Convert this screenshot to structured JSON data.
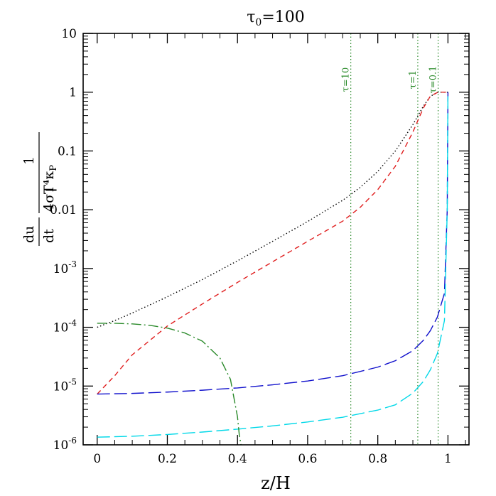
{
  "chart_data": {
    "type": "line",
    "title": "τ₀=100",
    "xlabel": "z/H",
    "ylabel": "- (du/dt) · 1/(4σT⁴κP)",
    "xlim": [
      -0.04,
      1.06
    ],
    "ylim": [
      1e-06,
      10
    ],
    "y_scale": "log",
    "grid": false,
    "x_ticks": [
      {
        "value": 0,
        "label": "0"
      },
      {
        "value": 0.2,
        "label": "0.2"
      },
      {
        "value": 0.4,
        "label": "0.4"
      },
      {
        "value": 0.6,
        "label": "0.6"
      },
      {
        "value": 0.8,
        "label": "0.8"
      },
      {
        "value": 1,
        "label": "1"
      }
    ],
    "y_ticks": [
      {
        "value": 10,
        "label": "10",
        "exp": ""
      },
      {
        "value": 1,
        "label": "1",
        "exp": ""
      },
      {
        "value": 0.1,
        "label": "0.1",
        "exp": ""
      },
      {
        "value": 0.01,
        "label": "0.01",
        "exp": ""
      },
      {
        "value": 0.001,
        "label": "10",
        "exp": "-3"
      },
      {
        "value": 0.0001,
        "label": "10",
        "exp": "-4"
      },
      {
        "value": 1e-05,
        "label": "10",
        "exp": "-5"
      },
      {
        "value": 1e-06,
        "label": "10",
        "exp": "-6"
      }
    ],
    "tau_markers": [
      {
        "label": "τ=10",
        "x": 0.723
      },
      {
        "label": "τ=1",
        "x": 0.914
      },
      {
        "label": "τ=0.1",
        "x": 0.972
      }
    ],
    "series": [
      {
        "color": "#000000",
        "dash": "1.5,3",
        "x": [
          0,
          0.05,
          0.1,
          0.2,
          0.3,
          0.4,
          0.5,
          0.6,
          0.7,
          0.75,
          0.8,
          0.85,
          0.9,
          0.93,
          0.95,
          0.97,
          0.98,
          1.0
        ],
        "y": [
          0.0001,
          0.00013,
          0.000175,
          0.00033,
          0.00065,
          0.00135,
          0.0029,
          0.0063,
          0.0145,
          0.024,
          0.045,
          0.1,
          0.28,
          0.58,
          0.85,
          0.99,
          1.0,
          1.0
        ]
      },
      {
        "color": "#e02020",
        "dash": "7,5",
        "x": [
          0,
          0.05,
          0.1,
          0.2,
          0.3,
          0.4,
          0.5,
          0.6,
          0.7,
          0.75,
          0.8,
          0.85,
          0.9,
          0.93,
          0.95,
          0.97,
          0.98,
          1.0
        ],
        "y": [
          7.3e-06,
          1.5e-05,
          3.4e-05,
          0.000105,
          0.00025,
          0.00058,
          0.0013,
          0.0029,
          0.0064,
          0.011,
          0.022,
          0.055,
          0.21,
          0.54,
          0.86,
          0.99,
          1.0,
          1.0
        ]
      },
      {
        "color": "#1010cc",
        "dash": "18,6",
        "x": [
          0,
          0.1,
          0.2,
          0.3,
          0.4,
          0.5,
          0.6,
          0.7,
          0.8,
          0.85,
          0.9,
          0.93,
          0.95,
          0.97,
          0.99,
          0.998,
          1.0
        ],
        "y": [
          7.3e-06,
          7.5e-06,
          7.9e-06,
          8.5e-06,
          9.3e-06,
          1.05e-05,
          1.22e-05,
          1.5e-05,
          2.1e-05,
          2.7e-05,
          4e-05,
          6e-05,
          8.8e-05,
          0.00015,
          0.00038,
          0.01,
          1.0
        ]
      },
      {
        "color": "#00d8e8",
        "dash": "18,6",
        "x": [
          0,
          0.1,
          0.2,
          0.3,
          0.4,
          0.5,
          0.6,
          0.7,
          0.8,
          0.85,
          0.9,
          0.93,
          0.95,
          0.97,
          0.99,
          0.998,
          1.0
        ],
        "y": [
          1.35e-06,
          1.4e-06,
          1.5e-06,
          1.65e-06,
          1.85e-06,
          2.1e-06,
          2.45e-06,
          2.95e-06,
          3.9e-06,
          4.8e-06,
          7.6e-06,
          1.2e-05,
          1.9e-05,
          3.6e-05,
          0.00013,
          0.01,
          1.0
        ]
      },
      {
        "color": "#2a8a2a",
        "dash": "14,4,2,4",
        "x": [
          0,
          0.05,
          0.1,
          0.15,
          0.2,
          0.25,
          0.3,
          0.35,
          0.38,
          0.4,
          0.405,
          0.41
        ],
        "y": [
          0.000117,
          0.000117,
          0.000114,
          0.000108,
          9.7e-05,
          8e-05,
          5.8e-05,
          3e-05,
          1.3e-05,
          3e-06,
          1.5e-06,
          1e-06
        ]
      }
    ]
  }
}
